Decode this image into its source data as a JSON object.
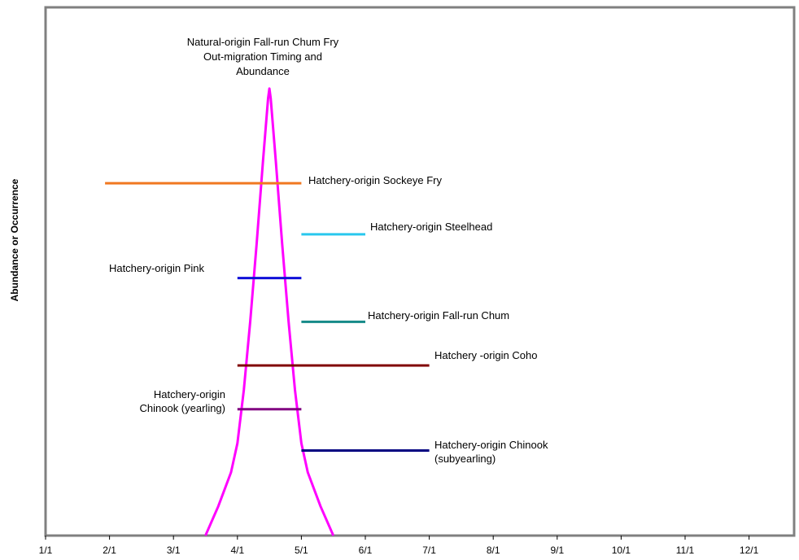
{
  "chart_data": {
    "type": "line",
    "ylabel": "Abundance or Occurrence",
    "xlabel": "",
    "x_ticks": [
      "1/1",
      "2/1",
      "3/1",
      "4/1",
      "5/1",
      "6/1",
      "7/1",
      "8/1",
      "9/1",
      "10/1",
      "11/1",
      "12/1"
    ],
    "xlim": [
      0,
      11.9
    ],
    "ylim": [
      0,
      10
    ],
    "grid": false,
    "curve": {
      "label_lines": [
        "Natural-origin Fall-run Chum Fry",
        "Out-migration Timing and",
        "Abundance"
      ],
      "color": "#ff00ff",
      "points": [
        [
          2.5,
          0.0
        ],
        [
          2.7,
          0.6
        ],
        [
          2.9,
          1.3
        ],
        [
          3.0,
          1.9
        ],
        [
          3.1,
          3.0
        ],
        [
          3.2,
          4.4
        ],
        [
          3.3,
          6.0
        ],
        [
          3.4,
          7.7
        ],
        [
          3.48,
          9.0
        ],
        [
          3.5,
          9.2
        ],
        [
          3.52,
          9.0
        ],
        [
          3.6,
          7.7
        ],
        [
          3.7,
          6.0
        ],
        [
          3.8,
          4.4
        ],
        [
          3.9,
          3.0
        ],
        [
          4.0,
          1.9
        ],
        [
          4.1,
          1.3
        ],
        [
          4.3,
          0.6
        ],
        [
          4.5,
          0.0
        ]
      ]
    },
    "series": [
      {
        "label_lines": [
          "Hatchery-origin Sockeye Fry"
        ],
        "color": "#f07820",
        "start": 0.93,
        "end": 4.0,
        "level": 7.25
      },
      {
        "label_lines": [
          "Hatchery-origin  Steelhead"
        ],
        "color": "#29c8ee",
        "start": 4.0,
        "end": 5.0,
        "level": 6.2
      },
      {
        "label_lines": [
          "Hatchery-origin Pink"
        ],
        "color": "#1010d8",
        "start": 3.0,
        "end": 4.0,
        "level": 5.3
      },
      {
        "label_lines": [
          "Hatchery-origin Fall-run Chum"
        ],
        "color": "#158a88",
        "start": 4.0,
        "end": 5.0,
        "level": 4.4
      },
      {
        "label_lines": [
          "Hatchery -origin Coho"
        ],
        "color": "#800000",
        "start": 3.0,
        "end": 6.0,
        "level": 3.5
      },
      {
        "label_lines": [
          "Hatchery-origin",
          "Chinook (yearling)"
        ],
        "color": "#800080",
        "start": 3.0,
        "end": 4.0,
        "level": 2.6
      },
      {
        "label_lines": [
          "Hatchery-origin Chinook",
          "(subyearling)"
        ],
        "color": "#000080",
        "start": 4.0,
        "end": 6.0,
        "level": 1.75
      }
    ]
  }
}
